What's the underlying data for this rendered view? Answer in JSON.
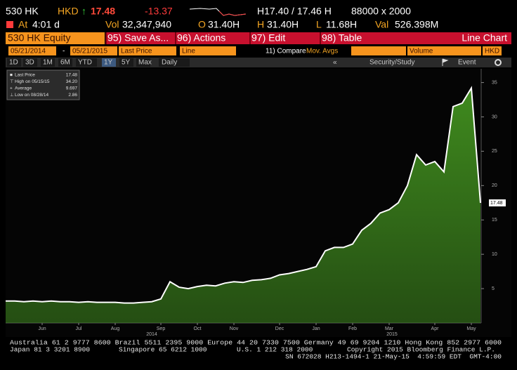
{
  "header": {
    "ticker": "530 HK",
    "currency": "HKD",
    "arrow": "↑",
    "last": "17.48",
    "change": "-13.37",
    "bid_ask": "H17.40 / 17.46 H",
    "size": "88000 x 2000",
    "time_label": "At",
    "time": "4:01 d",
    "vol_label": "Vol",
    "vol": "32,347,940",
    "open_label": "O",
    "open": "31.40H",
    "high_label": "H",
    "high": "31.40H",
    "low_label": "L",
    "low": "11.68H",
    "val_label": "Val",
    "val": "526.398M"
  },
  "menu": {
    "security": "530 HK Equity",
    "items": [
      "95) Save As...",
      "96) Actions",
      "97) Edit",
      "98) Table"
    ],
    "chart_type": "Line Chart"
  },
  "settings": {
    "start": "05/21/2014",
    "dash": "-",
    "end": "05/21/2015",
    "field": "Last Price",
    "style": "Line",
    "compare": "11) Compare",
    "mov_avgs": "Mov. Avgs",
    "volume": "Volume",
    "currency": "HKD"
  },
  "periods": {
    "items": [
      "1D",
      "3D",
      "1M",
      "6M",
      "YTD",
      "1Y",
      "5Y",
      "Max"
    ],
    "frequency": "Daily",
    "collapse": "«",
    "study": "Security/Study",
    "event": "Event"
  },
  "chart_data": {
    "type": "area",
    "categories": [
      null,
      null,
      null,
      null,
      "Jun",
      null,
      null,
      null,
      "Jul",
      null,
      null,
      null,
      "Aug",
      null,
      null,
      null,
      null,
      "Sep",
      null,
      null,
      null,
      "Oct",
      null,
      null,
      null,
      "Nov",
      null,
      null,
      null,
      null,
      "Dec",
      null,
      null,
      null,
      "Jan",
      null,
      null,
      null,
      "Feb",
      null,
      null,
      null,
      "Mar",
      null,
      null,
      null,
      null,
      "Apr",
      null,
      null,
      null,
      "May",
      null
    ],
    "values": [
      3.2,
      3.2,
      3.1,
      3.2,
      3.1,
      3.2,
      3.1,
      3.1,
      3.0,
      3.1,
      3.0,
      3.0,
      3.0,
      2.9,
      2.9,
      3.0,
      3.1,
      3.5,
      6.0,
      5.2,
      5.0,
      5.3,
      5.5,
      5.4,
      5.8,
      6.0,
      5.9,
      6.2,
      6.3,
      6.5,
      7.0,
      7.2,
      7.5,
      7.8,
      8.2,
      10.5,
      11.0,
      11.0,
      11.5,
      13.5,
      14.5,
      16.0,
      16.5,
      17.5,
      20.0,
      24.5,
      23.0,
      23.5,
      22.0,
      31.5,
      32.0,
      34.2,
      17.48
    ],
    "years": [
      "2014",
      "2015"
    ],
    "color": "#3f8a1e",
    "line_color": "#ffffff",
    "ylim": [
      0,
      37
    ],
    "yticks": [
      5,
      10,
      15,
      20,
      25,
      30,
      35
    ],
    "grid": false,
    "last_value_label": "17.48",
    "legend": [
      {
        "label": "Last Price",
        "value": "17.48"
      },
      {
        "label": "High on 05/15/15",
        "value": "34.20"
      },
      {
        "label": "Average",
        "value": "9.697"
      },
      {
        "label": "Low on 08/28/14",
        "value": "2.86"
      }
    ]
  },
  "footer": {
    "line1": "Australia 61 2 9777 8600 Brazil 5511 2395 9000 Europe 44 20 7330 7500 Germany 49 69 9204 1210 Hong Kong 852 2977 6000",
    "line2": [
      "Japan 81 3 3201 8900",
      "Singapore 65 6212 1000",
      "U.S. 1 212 318 2000",
      "Copyright 2015 Bloomberg Finance L.P."
    ],
    "line3": "SN 672028 H213-1494-1 21-May-15  4:59:59 EDT  GMT-4:00"
  }
}
